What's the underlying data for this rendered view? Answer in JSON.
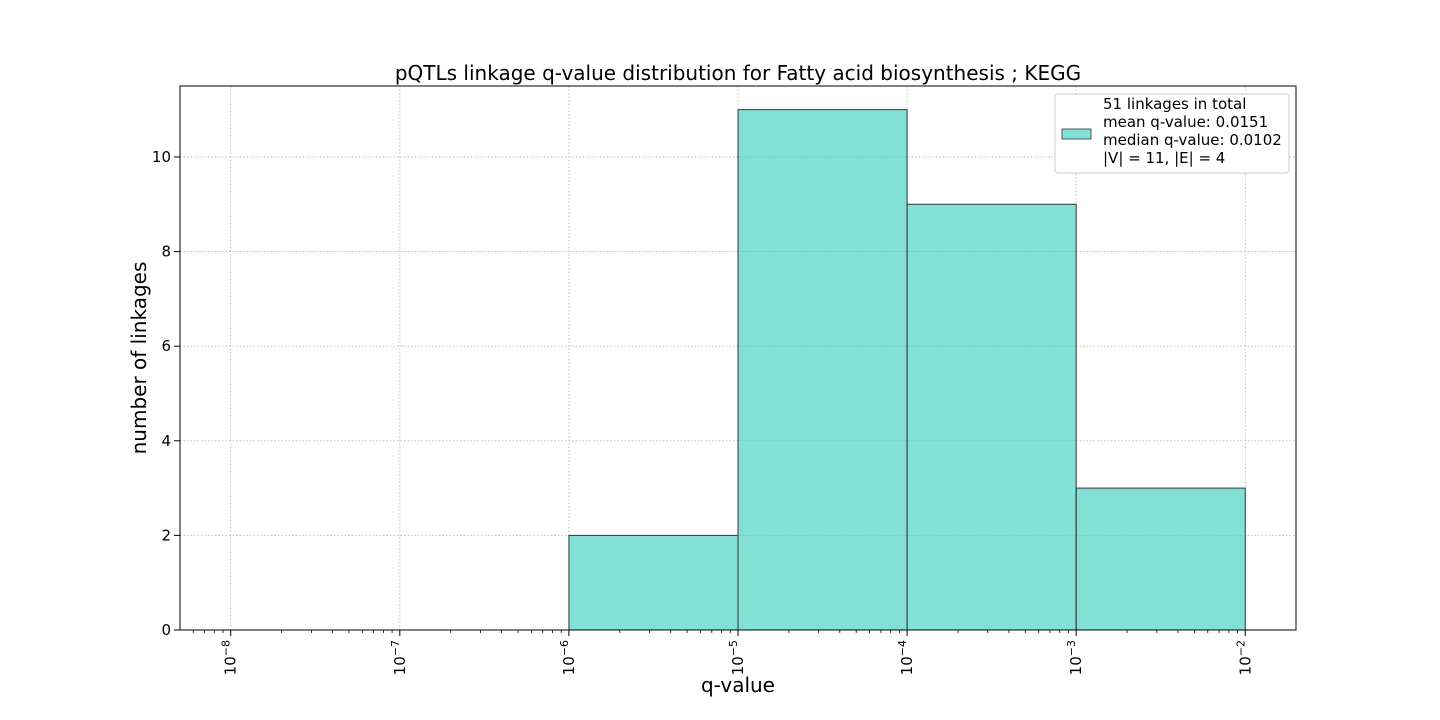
{
  "chart_data": {
    "type": "bar",
    "title": "pQTLs linkage q-value distribution for Fatty acid biosynthesis ; KEGG",
    "xlabel": "q-value",
    "ylabel": "number of linkages",
    "x_scale": "log",
    "bins": [
      {
        "x_start": 1e-06,
        "x_end": 1e-05,
        "count": 2
      },
      {
        "x_start": 1e-05,
        "x_end": 0.0001,
        "count": 11
      },
      {
        "x_start": 0.0001,
        "x_end": 0.001,
        "count": 9
      },
      {
        "x_start": 0.001,
        "x_end": 0.01,
        "count": 3
      }
    ],
    "x_ticks": [
      {
        "value": 1e-08,
        "base": "10",
        "exp": "−8"
      },
      {
        "value": 1e-07,
        "base": "10",
        "exp": "−7"
      },
      {
        "value": 1e-06,
        "base": "10",
        "exp": "−6"
      },
      {
        "value": 1e-05,
        "base": "10",
        "exp": "−5"
      },
      {
        "value": 0.0001,
        "base": "10",
        "exp": "−4"
      },
      {
        "value": 0.001,
        "base": "10",
        "exp": "−3"
      },
      {
        "value": 0.01,
        "base": "10",
        "exp": "−2"
      }
    ],
    "y_ticks": [
      "0",
      "2",
      "4",
      "6",
      "8",
      "10"
    ],
    "ylim": [
      0,
      11.5
    ],
    "xlim_log10": [
      -8.3,
      -1.7
    ],
    "grid": true,
    "bar_color": "#40D0C0",
    "legend": {
      "placement": "top-right",
      "lines": [
        "51 linkages in total",
        "mean q-value: 0.0151",
        "median q-value: 0.0102",
        "|V| = 11, |E| = 4"
      ]
    }
  }
}
